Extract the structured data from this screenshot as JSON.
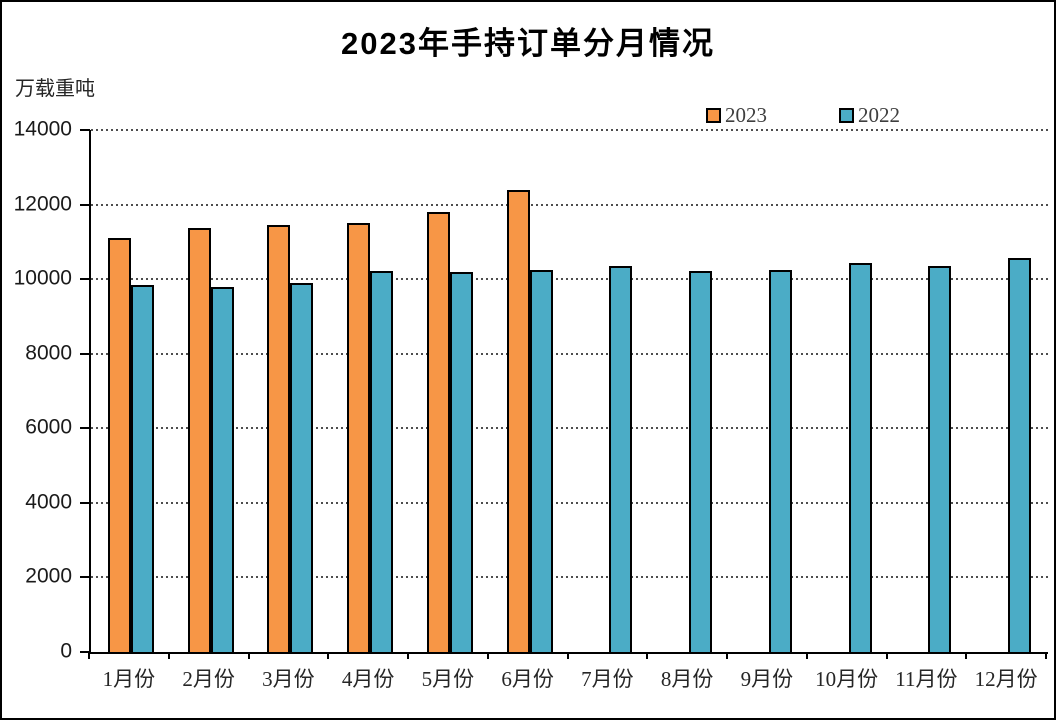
{
  "chart_data": {
    "type": "bar",
    "title": "2023年手持订单分月情况",
    "ylabel": "万载重吨",
    "xlabel": "",
    "categories": [
      "1月份",
      "2月份",
      "3月份",
      "4月份",
      "5月份",
      "6月份",
      "7月份",
      "8月份",
      "9月份",
      "10月份",
      "11月份",
      "12月份"
    ],
    "series": [
      {
        "name": "2023",
        "color": "#F79646",
        "values": [
          11110,
          11360,
          11450,
          11500,
          11790,
          12380,
          null,
          null,
          null,
          null,
          null,
          null
        ]
      },
      {
        "name": "2022",
        "color": "#4BACC6",
        "values": [
          9830,
          9800,
          9900,
          10220,
          10200,
          10250,
          10360,
          10210,
          10240,
          10440,
          10360,
          10560
        ]
      }
    ],
    "ylim": [
      0,
      14000
    ],
    "yticks": [
      0,
      2000,
      4000,
      6000,
      8000,
      10000,
      12000,
      14000
    ],
    "grid": "horizontal-dotted",
    "legend_position": "top-right",
    "colors": {
      "axis": "#000000",
      "gridline": "#4d4d4d",
      "background": "#ffffff",
      "bar_outline": "#000000"
    }
  }
}
